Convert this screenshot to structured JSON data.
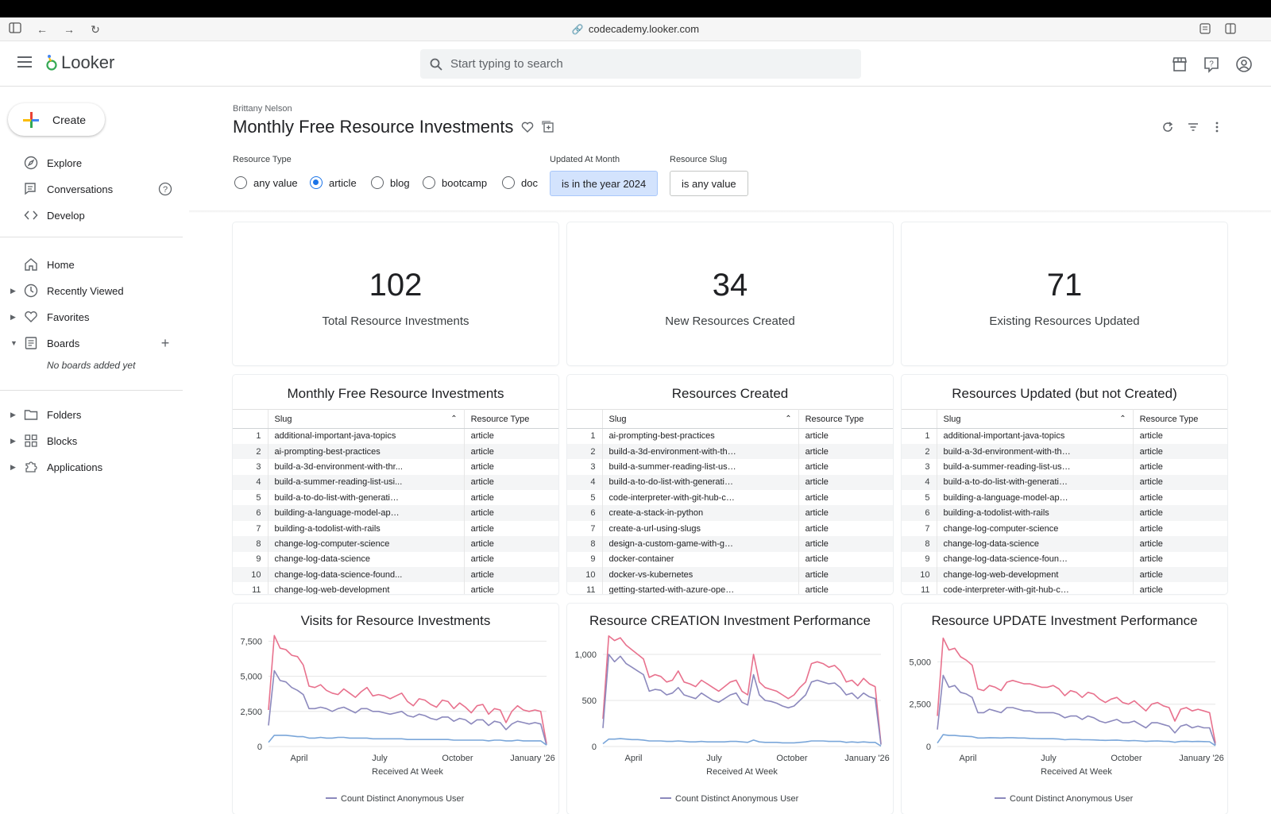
{
  "browser": {
    "url": "codecademy.looker.com"
  },
  "header": {
    "logo": "Looker",
    "search_placeholder": "Start typing to search"
  },
  "sidebar": {
    "create_label": "Create",
    "top_items": [
      {
        "label": "Explore",
        "icon": "compass-icon"
      },
      {
        "label": "Conversations",
        "icon": "chat-icon"
      },
      {
        "label": "Develop",
        "icon": "code-icon"
      }
    ],
    "mid_items": [
      {
        "label": "Home",
        "icon": "home-icon"
      },
      {
        "label": "Recently Viewed",
        "icon": "clock-icon"
      },
      {
        "label": "Favorites",
        "icon": "heart-icon"
      },
      {
        "label": "Boards",
        "icon": "board-icon"
      }
    ],
    "no_boards": "No boards added yet",
    "bottom_items": [
      {
        "label": "Folders",
        "icon": "folder-icon"
      },
      {
        "label": "Blocks",
        "icon": "blocks-icon"
      },
      {
        "label": "Applications",
        "icon": "puzzle-icon"
      }
    ]
  },
  "dashboard": {
    "owner": "Brittany Nelson",
    "title": "Monthly Free Resource Investments",
    "filters": {
      "resource_type_label": "Resource Type",
      "resource_type_options": [
        "any value",
        "article",
        "blog",
        "bootcamp",
        "doc"
      ],
      "resource_type_selected": "article",
      "updated_label": "Updated At Month",
      "updated_value": "is in the year 2024",
      "slug_label": "Resource Slug",
      "slug_value": "is any value"
    }
  },
  "kpis": [
    {
      "value": "102",
      "label": "Total Resource Investments"
    },
    {
      "value": "34",
      "label": "New Resources Created"
    },
    {
      "value": "71",
      "label": "Existing Resources Updated"
    }
  ],
  "tables": [
    {
      "title": "Monthly Free Resource Investments",
      "col_slug": "Slug",
      "col_type": "Resource Type",
      "rows": [
        [
          "1",
          "additional-important-java-topics",
          "article"
        ],
        [
          "2",
          "ai-prompting-best-practices",
          "article"
        ],
        [
          "3",
          "build-a-3d-environment-with-thr...",
          "article"
        ],
        [
          "4",
          "build-a-summer-reading-list-usi...",
          "article"
        ],
        [
          "5",
          "build-a-to-do-list-with-generative...",
          "article"
        ],
        [
          "6",
          "building-a-language-model-appli...",
          "article"
        ],
        [
          "7",
          "building-a-todolist-with-rails",
          "article"
        ],
        [
          "8",
          "change-log-computer-science",
          "article"
        ],
        [
          "9",
          "change-log-data-science",
          "article"
        ],
        [
          "10",
          "change-log-data-science-found...",
          "article"
        ],
        [
          "11",
          "change-log-web-development",
          "article"
        ]
      ]
    },
    {
      "title": "Resources Created",
      "col_slug": "Slug",
      "col_type": "Resource Type",
      "rows": [
        [
          "1",
          "ai-prompting-best-practices",
          "article"
        ],
        [
          "2",
          "build-a-3d-environment-with-thre...",
          "article"
        ],
        [
          "3",
          "build-a-summer-reading-list-usin...",
          "article"
        ],
        [
          "4",
          "build-a-to-do-list-with-generative-ai",
          "article"
        ],
        [
          "5",
          "code-interpreter-with-git-hub-co-...",
          "article"
        ],
        [
          "6",
          "create-a-stack-in-python",
          "article"
        ],
        [
          "7",
          "create-a-url-using-slugs",
          "article"
        ],
        [
          "8",
          "design-a-custom-game-with-gen...",
          "article"
        ],
        [
          "9",
          "docker-container",
          "article"
        ],
        [
          "10",
          "docker-vs-kubernetes",
          "article"
        ],
        [
          "11",
          "getting-started-with-azure-open-a...",
          "article"
        ]
      ]
    },
    {
      "title": "Resources Updated (but not Created)",
      "col_slug": "Slug",
      "col_type": "Resource Type",
      "rows": [
        [
          "1",
          "additional-important-java-topics",
          "article"
        ],
        [
          "2",
          "build-a-3d-environment-with-thre...",
          "article"
        ],
        [
          "3",
          "build-a-summer-reading-list-usin...",
          "article"
        ],
        [
          "4",
          "build-a-to-do-list-with-generative-ai",
          "article"
        ],
        [
          "5",
          "building-a-language-model-applic...",
          "article"
        ],
        [
          "6",
          "building-a-todolist-with-rails",
          "article"
        ],
        [
          "7",
          "change-log-computer-science",
          "article"
        ],
        [
          "8",
          "change-log-data-science",
          "article"
        ],
        [
          "9",
          "change-log-data-science-foundat...",
          "article"
        ],
        [
          "10",
          "change-log-web-development",
          "article"
        ],
        [
          "11",
          "code-interpreter-with-git-hub-co-...",
          "article"
        ]
      ]
    }
  ],
  "chart_data": [
    {
      "type": "line",
      "title": "Visits for Resource Investments",
      "xlabel": "Received At Week",
      "x_ticks": [
        "April",
        "July",
        "October",
        "January '26"
      ],
      "y_ticks": [
        "0",
        "2,500",
        "5,000",
        "7,500"
      ],
      "ylim": [
        0,
        8200
      ],
      "legend": "Count Distinct Anonymous User",
      "series": [
        {
          "color": "#e8718d",
          "values": [
            2600,
            7900,
            7000,
            6900,
            6500,
            6400,
            5800,
            4300,
            4200,
            4400,
            4000,
            3800,
            3700,
            4100,
            3800,
            3500,
            3900,
            4200,
            3600,
            3700,
            3600,
            3400,
            3600,
            3800,
            3200,
            2900,
            3400,
            3300,
            3000,
            2800,
            3300,
            3200,
            2700,
            3100,
            2800,
            2400,
            2900,
            3000,
            2300,
            2700,
            2600,
            1700,
            2500,
            2900,
            2600,
            2500,
            2600,
            2500,
            200
          ]
        },
        {
          "color": "#8c89bd",
          "values": [
            1500,
            5400,
            4700,
            4600,
            4200,
            4000,
            3700,
            2700,
            2700,
            2800,
            2700,
            2500,
            2700,
            2800,
            2600,
            2400,
            2700,
            2700,
            2500,
            2500,
            2400,
            2300,
            2400,
            2500,
            2200,
            2100,
            2300,
            2200,
            2000,
            1900,
            2100,
            2100,
            1800,
            2000,
            1900,
            1600,
            1900,
            1900,
            1500,
            1800,
            1700,
            1200,
            1600,
            1800,
            1700,
            1600,
            1700,
            1600,
            100
          ]
        },
        {
          "color": "#7aa6d9",
          "values": [
            300,
            800,
            800,
            800,
            750,
            700,
            700,
            600,
            600,
            650,
            600,
            600,
            650,
            650,
            600,
            600,
            600,
            600,
            550,
            550,
            550,
            550,
            550,
            550,
            500,
            500,
            500,
            500,
            500,
            500,
            500,
            500,
            450,
            450,
            450,
            450,
            450,
            450,
            400,
            450,
            450,
            400,
            400,
            450,
            400,
            400,
            400,
            400,
            100
          ]
        }
      ]
    },
    {
      "type": "line",
      "title": "Resource CREATION Investment Performance",
      "xlabel": "Received At Week",
      "x_ticks": [
        "April",
        "July",
        "October",
        "January '26"
      ],
      "y_ticks": [
        "0",
        "500",
        "1,000"
      ],
      "ylim": [
        0,
        1250
      ],
      "legend": "Count Distinct Anonymous User",
      "series": [
        {
          "color": "#e8718d",
          "values": [
            300,
            1200,
            1150,
            1180,
            1100,
            1050,
            1000,
            950,
            750,
            780,
            760,
            700,
            720,
            820,
            700,
            680,
            650,
            720,
            680,
            640,
            600,
            650,
            700,
            720,
            600,
            560,
            1000,
            700,
            640,
            620,
            600,
            560,
            520,
            560,
            640,
            700,
            900,
            920,
            900,
            860,
            880,
            820,
            700,
            720,
            660,
            740,
            680,
            650,
            30
          ]
        },
        {
          "color": "#8c89bd",
          "values": [
            200,
            1000,
            920,
            980,
            900,
            860,
            820,
            780,
            600,
            620,
            610,
            560,
            580,
            640,
            560,
            540,
            520,
            580,
            540,
            500,
            480,
            520,
            560,
            580,
            480,
            450,
            780,
            560,
            500,
            490,
            470,
            440,
            420,
            440,
            500,
            560,
            700,
            720,
            700,
            680,
            690,
            640,
            560,
            580,
            520,
            580,
            540,
            520,
            20
          ]
        },
        {
          "color": "#7aa6d9",
          "values": [
            30,
            80,
            80,
            85,
            80,
            75,
            75,
            70,
            60,
            60,
            60,
            55,
            55,
            60,
            55,
            50,
            50,
            55,
            50,
            50,
            50,
            50,
            55,
            55,
            50,
            45,
            70,
            50,
            45,
            45,
            45,
            40,
            40,
            40,
            45,
            50,
            60,
            60,
            60,
            55,
            55,
            55,
            45,
            50,
            45,
            50,
            45,
            45,
            5
          ]
        }
      ]
    },
    {
      "type": "line",
      "title": "Resource UPDATE Investment Performance",
      "xlabel": "Received At Week",
      "x_ticks": [
        "April",
        "July",
        "October",
        "January '26"
      ],
      "y_ticks": [
        "0",
        "2,500",
        "5,000"
      ],
      "ylim": [
        0,
        6800
      ],
      "legend": "Count Distinct Anonymous User",
      "series": [
        {
          "color": "#e8718d",
          "values": [
            1800,
            6400,
            5700,
            5800,
            5300,
            5100,
            4800,
            3400,
            3300,
            3600,
            3500,
            3300,
            3800,
            3900,
            3800,
            3700,
            3700,
            3600,
            3500,
            3500,
            3600,
            3400,
            3000,
            3300,
            3200,
            2900,
            3200,
            3100,
            2800,
            2600,
            2800,
            2900,
            2600,
            2500,
            2700,
            2400,
            2100,
            2500,
            2600,
            2400,
            2300,
            1500,
            2200,
            2300,
            2100,
            2200,
            2100,
            2000,
            200
          ]
        },
        {
          "color": "#8c89bd",
          "values": [
            1000,
            4200,
            3500,
            3600,
            3200,
            3100,
            2900,
            2000,
            2000,
            2200,
            2100,
            2000,
            2300,
            2300,
            2200,
            2100,
            2100,
            2000,
            2000,
            2000,
            2000,
            1900,
            1700,
            1800,
            1800,
            1600,
            1800,
            1700,
            1500,
            1400,
            1500,
            1600,
            1400,
            1400,
            1500,
            1300,
            1100,
            1400,
            1400,
            1300,
            1200,
            800,
            1200,
            1300,
            1100,
            1200,
            1100,
            1100,
            100
          ]
        },
        {
          "color": "#7aa6d9",
          "values": [
            200,
            700,
            650,
            650,
            620,
            600,
            580,
            500,
            500,
            520,
            510,
            500,
            520,
            520,
            500,
            500,
            480,
            470,
            460,
            460,
            460,
            440,
            400,
            420,
            420,
            400,
            400,
            390,
            370,
            360,
            370,
            380,
            350,
            340,
            350,
            330,
            300,
            320,
            330,
            310,
            300,
            250,
            300,
            310,
            290,
            300,
            290,
            280,
            50
          ]
        }
      ]
    }
  ]
}
